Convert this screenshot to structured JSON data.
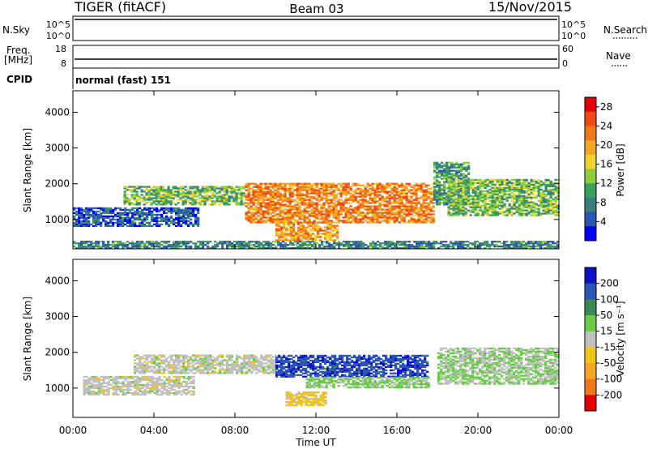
{
  "header": {
    "radar": "TIGER (fitACF)",
    "beam": "Beam 03",
    "date": "15/Nov/2015"
  },
  "strips": {
    "nsky": {
      "label": "N.Sky",
      "ticks_left": [
        "10^5",
        "10^0"
      ],
      "ticks_right": [
        "10^5",
        "10^0"
      ],
      "right_label": "N.Search"
    },
    "freq": {
      "label_line1": "Freq.",
      "label_line2": "[MHz]",
      "ticks_left": [
        "18",
        "8"
      ],
      "ticks_right": [
        "60",
        "0"
      ],
      "right_label": "Nave"
    },
    "cpid": {
      "label": "CPID",
      "value": "normal (fast) 151"
    }
  },
  "time_axis": {
    "label": "Time UT",
    "ticks": [
      "00:00",
      "04:00",
      "08:00",
      "12:00",
      "16:00",
      "20:00",
      "00:00"
    ]
  },
  "chart_data": [
    {
      "type": "heatmap",
      "name": "power-panel",
      "ylabel": "Slant Range [km]",
      "ylim": [
        180,
        4600
      ],
      "yticks": [
        "1000",
        "2000",
        "3000",
        "4000"
      ],
      "xlim": [
        "00:00",
        "24:00"
      ],
      "colorbar": {
        "label": "Power [dB]",
        "ticks": [
          "4",
          "8",
          "12",
          "16",
          "20",
          "24",
          "28"
        ]
      },
      "colors": [
        "#0000ff",
        "#2a55b5",
        "#3a7f80",
        "#3aa35a",
        "#8ccf3c",
        "#f0d22a",
        "#f5a623",
        "#f07818",
        "#ef4a14",
        "#e60000"
      ],
      "regions": [
        {
          "t_start": 0.0,
          "t_end": 6.2,
          "range_min": 800,
          "range_max": 1300,
          "value": 5
        },
        {
          "t_start": 2.5,
          "t_end": 8.5,
          "range_min": 1400,
          "range_max": 1900,
          "value": 12
        },
        {
          "t_start": 8.5,
          "t_end": 17.8,
          "range_min": 900,
          "range_max": 2000,
          "value": 22
        },
        {
          "t_start": 10.0,
          "t_end": 13.0,
          "range_min": 400,
          "range_max": 900,
          "value": 20
        },
        {
          "t_start": 17.8,
          "t_end": 19.5,
          "range_min": 1400,
          "range_max": 2600,
          "value": 10
        },
        {
          "t_start": 18.5,
          "t_end": 24.0,
          "range_min": 1100,
          "range_max": 2100,
          "value": 12
        },
        {
          "t_start": 0.0,
          "t_end": 24.0,
          "range_min": 180,
          "range_max": 400,
          "value": 8
        }
      ]
    },
    {
      "type": "heatmap",
      "name": "velocity-panel",
      "ylabel": "Slant Range [km]",
      "ylim": [
        180,
        4600
      ],
      "yticks": [
        "1000",
        "2000",
        "3000",
        "4000"
      ],
      "xlim": [
        "00:00",
        "24:00"
      ],
      "colorbar": {
        "label": "Velocity [m s⁻¹]",
        "ticks": [
          "200",
          "100",
          "50",
          "15",
          "-15",
          "-50",
          "-100",
          "-200"
        ]
      },
      "colors": [
        "#1010c8",
        "#2a55b5",
        "#3a8a55",
        "#66cc44",
        "#c0c0c0",
        "#f0c419",
        "#f5a623",
        "#f07818",
        "#e60000"
      ],
      "regions": [
        {
          "t_start": 0.5,
          "t_end": 6.0,
          "range_min": 800,
          "range_max": 1300,
          "value": 0
        },
        {
          "t_start": 3.0,
          "t_end": 10.0,
          "range_min": 1400,
          "range_max": 1900,
          "value": 0
        },
        {
          "t_start": 10.0,
          "t_end": 17.5,
          "range_min": 1300,
          "range_max": 1900,
          "value": 140
        },
        {
          "t_start": 11.5,
          "t_end": 17.5,
          "range_min": 1000,
          "range_max": 1300,
          "value": 30
        },
        {
          "t_start": 10.5,
          "t_end": 12.5,
          "range_min": 500,
          "range_max": 900,
          "value": -40
        },
        {
          "t_start": 18.0,
          "t_end": 24.0,
          "range_min": 1100,
          "range_max": 2100,
          "value": 20
        }
      ]
    }
  ]
}
